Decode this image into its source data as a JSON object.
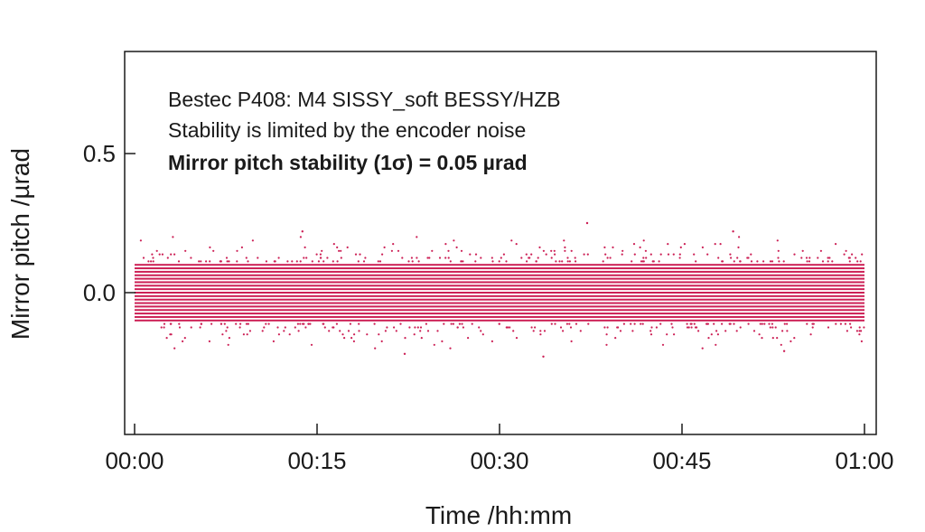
{
  "chart_data": {
    "type": "scatter",
    "xlabel": "Time /hh:mm",
    "ylabel": "Mirror pitch /µrad",
    "x_range_minutes": [
      0,
      60
    ],
    "xlim": [
      "00:00",
      "01:00"
    ],
    "ylim": [
      -0.5,
      0.85
    ],
    "x_ticks": [
      "00:00",
      "00:15",
      "00:30",
      "00:45",
      "01:00"
    ],
    "y_ticks": [
      {
        "value": 0.5,
        "label": "0.5"
      },
      {
        "value": 0.0,
        "label": "0.0"
      }
    ],
    "annotations": [
      "Bestec P408: M4 SISSY_soft BESSY/HZB",
      "Stability is limited by the encoder noise",
      "Mirror pitch stability (1σ) = 0.05 µrad"
    ],
    "series": [
      {
        "marker_color": "#cc1f55",
        "sigma": 0.05,
        "core_range": [
          -0.1,
          0.1
        ],
        "extreme_range": [
          -0.23,
          0.25
        ]
      }
    ],
    "grid": false,
    "legend": "none"
  }
}
